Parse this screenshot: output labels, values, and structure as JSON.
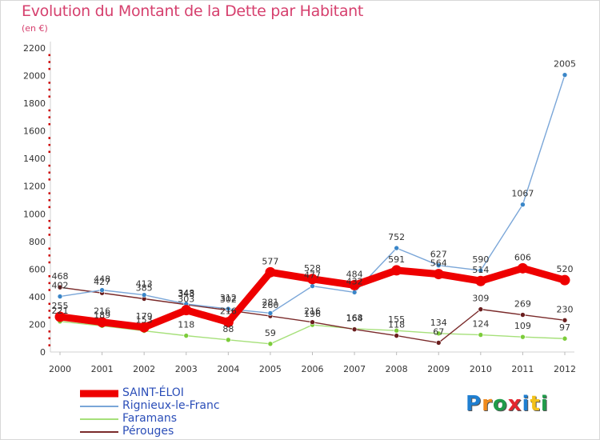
{
  "title": "Evolution du Montant de la Dette par Habitant",
  "subtitle": "(en €)",
  "logo": {
    "text": "Proxiti",
    "letters": [
      {
        "ch": "P",
        "color": "#1f7fd1"
      },
      {
        "ch": "r",
        "color": "#f08a1c"
      },
      {
        "ch": "o",
        "color": "#1f9c4a"
      },
      {
        "ch": "x",
        "color": "#e3262e"
      },
      {
        "ch": "i",
        "color": "#1f7fd1"
      },
      {
        "ch": "t",
        "color": "#f3c21b"
      },
      {
        "ch": "i",
        "color": "#1f9c4a"
      }
    ]
  },
  "chart_data": {
    "type": "line",
    "title": "Evolution du Montant de la Dette par Habitant",
    "subtitle": "(en €)",
    "x": [
      "2000",
      "2001",
      "2002",
      "2003",
      "2004",
      "2005",
      "2006",
      "2007",
      "2008",
      "2009",
      "2010",
      "2011",
      "2012"
    ],
    "ylim": [
      0,
      2200
    ],
    "yticks": [
      "0",
      "200",
      "400",
      "600",
      "800",
      "1000",
      "1200",
      "1400",
      "1600",
      "1800",
      "2000",
      "2200"
    ],
    "grid": false,
    "legend_position": "bottom-left",
    "series": [
      {
        "name": "SAINT-ÉLOI",
        "color": "#ee0000",
        "width": "thick",
        "values": [
          255,
          216,
          179,
          303,
          216,
          577,
          528,
          484,
          591,
          564,
          514,
          606,
          520
        ]
      },
      {
        "name": "Rignieux-le-Franc",
        "color": "#7aa6d8",
        "point": "#3a86c8",
        "width": "thin",
        "values": [
          402,
          448,
          413,
          348,
          312,
          281,
          477,
          432,
          752,
          627,
          590,
          1067,
          2005
        ]
      },
      {
        "name": "Faramans",
        "color": "#a6e07a",
        "point": "#7ccc3a",
        "width": "thin",
        "values": [
          221,
          189,
          153,
          118,
          88,
          59,
          196,
          168,
          155,
          134,
          124,
          109,
          97
        ]
      },
      {
        "name": "Pérouges",
        "color": "#7a2a2a",
        "point": "#6a1e1e",
        "width": "thin",
        "values": [
          468,
          427,
          385,
          343,
          302,
          260,
          216,
          164,
          118,
          67,
          309,
          269,
          230
        ]
      }
    ],
    "labels": [
      {
        "series": 0,
        "points": [
          0,
          1,
          2,
          3,
          4,
          5,
          6,
          7,
          8,
          9,
          10,
          11,
          12
        ],
        "text": [
          "255",
          "216",
          "179",
          "303",
          "216",
          "577",
          "528",
          "484",
          "591",
          "564",
          "514",
          "606",
          "520"
        ]
      },
      {
        "series": 1,
        "points": [
          0,
          1,
          2,
          3,
          4,
          5,
          6,
          7,
          8,
          9,
          10,
          11,
          12
        ],
        "text": [
          "402",
          "448",
          "413",
          "348",
          "312",
          "281",
          "477",
          "432",
          "752",
          "627",
          "590",
          "1067",
          "2005"
        ]
      },
      {
        "series": 2,
        "points": [
          0,
          1,
          2,
          3,
          4,
          5,
          6,
          7,
          8,
          9,
          10,
          11,
          12
        ],
        "text": [
          "221",
          "189",
          "153",
          "118",
          "88",
          "59",
          "196",
          "168",
          "155",
          "134",
          "124",
          "109",
          "97"
        ]
      },
      {
        "series": 3,
        "points": [
          0,
          1,
          2,
          3,
          4,
          5,
          6,
          7,
          8,
          9,
          10,
          11,
          12
        ],
        "text": [
          "468",
          "427",
          "385",
          "343",
          "302",
          "260",
          "216",
          "164",
          "118",
          "67",
          "309",
          "269",
          "230"
        ]
      }
    ]
  }
}
